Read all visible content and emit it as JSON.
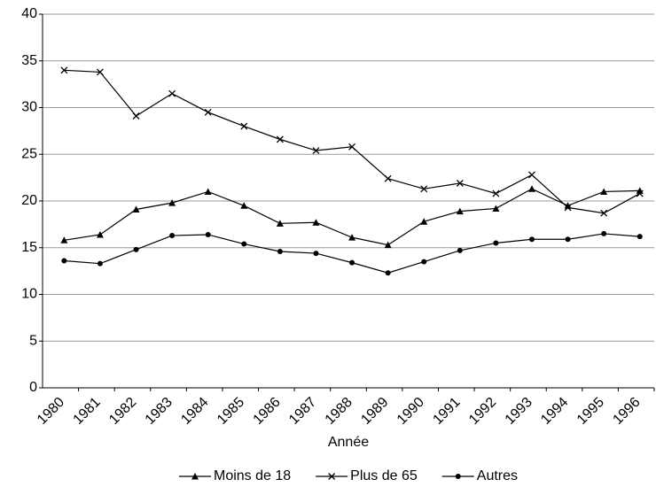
{
  "chart_data": {
    "type": "line",
    "x_label": "Année",
    "categories": [
      "1980",
      "1981",
      "1982",
      "1983",
      "1984",
      "1985",
      "1986",
      "1987",
      "1988",
      "1989",
      "1990",
      "1991",
      "1992",
      "1993",
      "1994",
      "1995",
      "1996"
    ],
    "series": [
      {
        "name": "Moins de 18",
        "color": "#000000",
        "marker": "triangle",
        "values": [
          15.8,
          16.4,
          19.1,
          19.8,
          21.0,
          19.5,
          17.6,
          17.7,
          16.1,
          15.3,
          17.8,
          18.9,
          19.2,
          21.3,
          19.5,
          21.0,
          21.1
        ]
      },
      {
        "name": "Plus de 65",
        "color": "#000000",
        "marker": "cross",
        "values": [
          34.0,
          33.8,
          29.1,
          31.5,
          29.5,
          28.0,
          26.6,
          25.4,
          25.8,
          22.4,
          21.3,
          21.9,
          20.8,
          22.8,
          19.3,
          18.7,
          20.8
        ]
      },
      {
        "name": "Autres",
        "color": "#000000",
        "marker": "circle",
        "values": [
          13.6,
          13.3,
          14.8,
          16.3,
          16.4,
          15.4,
          14.6,
          14.4,
          13.4,
          12.3,
          13.5,
          14.7,
          15.5,
          15.9,
          15.9,
          16.5,
          16.2
        ]
      }
    ],
    "ylim": [
      0,
      40
    ],
    "yticks": [
      0,
      5,
      10,
      15,
      20,
      25,
      30,
      35,
      40
    ],
    "grid": true,
    "legend": "bottom"
  }
}
